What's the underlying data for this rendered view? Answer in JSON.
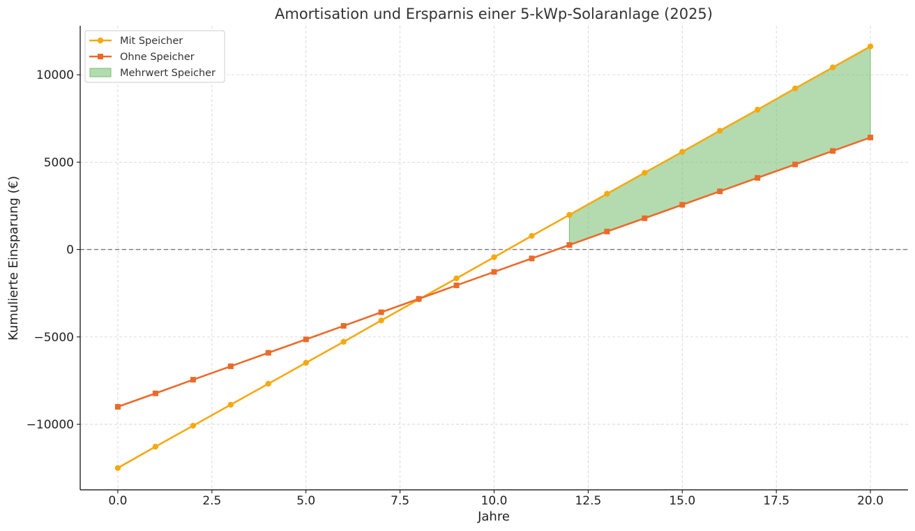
{
  "chart_data": {
    "type": "line",
    "title": "Amortisation und Ersparnis einer 5-kWp-Solaranlage (2025)",
    "xlabel": "Jahre",
    "ylabel": "Kumulierte Einsparung (€)",
    "xlim": [
      -1,
      21
    ],
    "ylim": [
      -13750,
      12800
    ],
    "xticks": [
      0.0,
      2.5,
      5.0,
      7.5,
      10.0,
      12.5,
      15.0,
      17.5,
      20.0
    ],
    "xtick_labels": [
      "0.0",
      "2.5",
      "5.0",
      "7.5",
      "10.0",
      "12.5",
      "15.0",
      "17.5",
      "20.0"
    ],
    "yticks": [
      -10000,
      -5000,
      0,
      5000,
      10000
    ],
    "ytick_labels": [
      "−10000",
      "−5000",
      "0",
      "5000",
      "10000"
    ],
    "grid": true,
    "legend_position": "top-left",
    "x": [
      0,
      1,
      2,
      3,
      4,
      5,
      6,
      7,
      8,
      9,
      10,
      11,
      12,
      13,
      14,
      15,
      16,
      17,
      18,
      19,
      20
    ],
    "series": [
      {
        "name": "Mit Speicher",
        "color": "#F5A911",
        "marker": "circle",
        "values": [
          -12500,
          -11280,
          -10080,
          -8880,
          -7680,
          -6480,
          -5280,
          -4060,
          -2850,
          -1650,
          -440,
          780,
          1980,
          3190,
          4390,
          5590,
          6800,
          8000,
          9220,
          10420,
          11620
        ]
      },
      {
        "name": "Ohne Speicher",
        "color": "#EB6A2A",
        "marker": "square",
        "values": [
          -9000,
          -8230,
          -7450,
          -6680,
          -5910,
          -5140,
          -4370,
          -3590,
          -2820,
          -2050,
          -1280,
          -510,
          260,
          1030,
          1790,
          2560,
          3330,
          4100,
          4870,
          5640,
          6410
        ]
      }
    ],
    "fill": {
      "name": "Mehrwert Speicher",
      "color": "#74BE6E",
      "opacity": 0.55,
      "x_from": 12,
      "x_to": 20,
      "between": [
        "Mit Speicher",
        "Ohne Speicher"
      ]
    },
    "reference_line": {
      "y": 0,
      "style": "dashed",
      "color": "#777777"
    }
  }
}
